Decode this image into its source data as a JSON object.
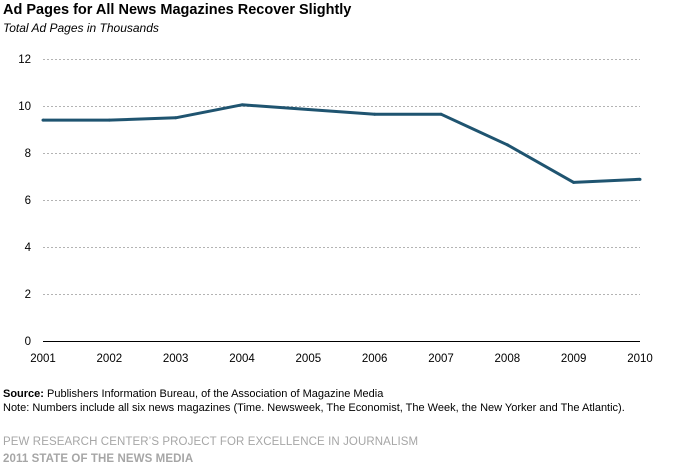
{
  "header": {
    "title": "Ad Pages for All News Magazines Recover Slightly",
    "subtitle": "Total Ad Pages in Thousands"
  },
  "footer": {
    "source_label": "Source:",
    "source_text": " Publishers Information Bureau, of the Association of Magazine Media",
    "note": "Note: Numbers include all six news magazines (Time. Newsweek, The Economist, The Week, the New Yorker and The Atlantic).",
    "credit_line1": "PEW RESEARCH CENTER’S PROJECT FOR EXCELLENCE IN JOURNALISM",
    "credit_line2": "2011 STATE OF THE NEWS MEDIA"
  },
  "colors": {
    "line": "#1f5470",
    "grid": "#b3b3b3",
    "axis": "#000000"
  },
  "chart_data": {
    "type": "line",
    "title": "Ad Pages for All News Magazines Recover Slightly",
    "subtitle": "Total Ad Pages in Thousands",
    "categories": [
      "2001",
      "2002",
      "2003",
      "2004",
      "2005",
      "2006",
      "2007",
      "2008",
      "2009",
      "2010"
    ],
    "series": [
      {
        "values": [
          9.4,
          9.4,
          9.5,
          10.05,
          9.85,
          9.65,
          9.65,
          8.35,
          6.75,
          6.88
        ]
      }
    ],
    "ylim": [
      0,
      12
    ],
    "yticks": [
      0,
      2,
      4,
      6,
      8,
      10,
      12
    ],
    "grid": "horizontal dashed",
    "legend": "none"
  }
}
